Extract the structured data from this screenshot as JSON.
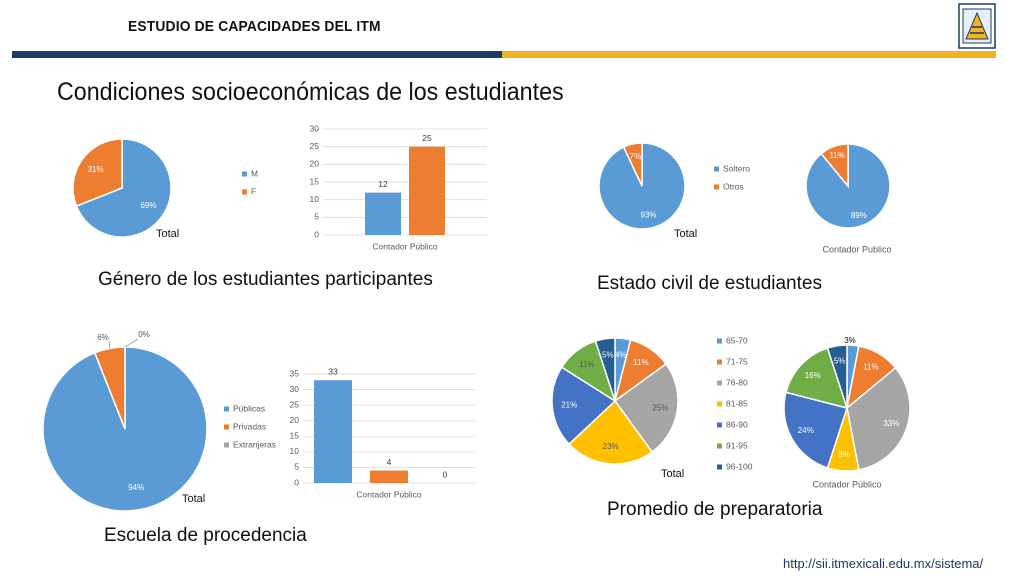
{
  "header": {
    "title": "ESTUDIO DE CAPACIDADES DEL ITM"
  },
  "slide": {
    "title": "Condiciones socioeconómicas de los estudiantes",
    "url": "http://sii.itmexicali.edu.mx/sistema/"
  },
  "captions": {
    "gender": "Género de los estudiantes participantes",
    "civil": "Estado civil de estudiantes",
    "school": "Escuela de procedencia",
    "average": "Promedio de preparatoria"
  },
  "colors": {
    "blue": "#5b9bd5",
    "orange": "#ed7d31",
    "gray": "#a5a5a5",
    "yellow": "#ffc000",
    "darkblue": "#4472c4",
    "green": "#70ad47",
    "navy": "#255e91"
  },
  "chart_data": [
    {
      "id": "gender_pie",
      "type": "pie",
      "categories": [
        "M",
        "F"
      ],
      "values": [
        69,
        31
      ],
      "labels": [
        "69%",
        "31%"
      ],
      "xlabel": "Total"
    },
    {
      "id": "gender_legend",
      "type": "legend",
      "categories": [
        "M",
        "F"
      ]
    },
    {
      "id": "gender_bar",
      "type": "bar",
      "categories": [
        "Contador Público"
      ],
      "series": [
        {
          "values": [
            12
          ]
        },
        {
          "values": [
            25
          ]
        }
      ],
      "yticks": [
        "0",
        "5",
        "10",
        "15",
        "20",
        "25",
        "30"
      ],
      "ylim": [
        0,
        30
      ],
      "data_labels": [
        "12",
        "25"
      ]
    },
    {
      "id": "civil_pie_total",
      "type": "pie",
      "categories": [
        "Soltero",
        "Otros"
      ],
      "values": [
        93,
        7
      ],
      "labels": [
        "93%",
        "7%"
      ],
      "xlabel": "Total"
    },
    {
      "id": "civil_legend",
      "type": "legend",
      "categories": [
        "Soltero",
        "Otros"
      ]
    },
    {
      "id": "civil_pie_cp",
      "type": "pie",
      "categories": [
        "Soltero",
        "Otros"
      ],
      "values": [
        89,
        11
      ],
      "labels": [
        "89%",
        "11%"
      ],
      "xlabel": "Contador Publico"
    },
    {
      "id": "school_pie",
      "type": "pie",
      "categories": [
        "Públicas",
        "Privadas",
        "Extranjeras"
      ],
      "values": [
        94,
        6,
        0
      ],
      "labels": [
        "94%",
        "6%",
        "0%"
      ],
      "xlabel": "Total"
    },
    {
      "id": "school_legend",
      "type": "legend",
      "categories": [
        "Públicas",
        "Privadas",
        "Extranjeras"
      ]
    },
    {
      "id": "school_bar",
      "type": "bar",
      "categories": [
        "Contador Público"
      ],
      "series": [
        {
          "values": [
            33
          ]
        },
        {
          "values": [
            4
          ]
        },
        {
          "values": [
            0
          ]
        }
      ],
      "yticks": [
        "0",
        "5",
        "10",
        "15",
        "20",
        "25",
        "30",
        "35"
      ],
      "ylim": [
        0,
        35
      ],
      "data_labels": [
        "33",
        "4",
        "0"
      ]
    },
    {
      "id": "avg_pie_total",
      "type": "pie",
      "categories": [
        "65-70",
        "71-75",
        "76-80",
        "81-85",
        "86-90",
        "91-95",
        "96-100"
      ],
      "values": [
        4,
        11,
        25,
        23,
        21,
        11,
        5
      ],
      "labels": [
        "4%",
        "11%",
        "25%",
        "23%",
        "21%",
        "11%",
        "5%"
      ],
      "xlabel": "Total"
    },
    {
      "id": "avg_legend",
      "type": "legend",
      "categories": [
        "65-70",
        "71-75",
        "76-80",
        "81-85",
        "86-90",
        "91-95",
        "96-100"
      ]
    },
    {
      "id": "avg_pie_cp",
      "type": "pie",
      "categories": [
        "65-70",
        "71-75",
        "76-80",
        "81-85",
        "86-90",
        "91-95",
        "96-100"
      ],
      "values": [
        3,
        11,
        33,
        8,
        24,
        16,
        5
      ],
      "labels": [
        "3%",
        "11%",
        "33%",
        "8%",
        "24%",
        "16%",
        "5%"
      ],
      "xlabel": "Contador Público"
    }
  ]
}
